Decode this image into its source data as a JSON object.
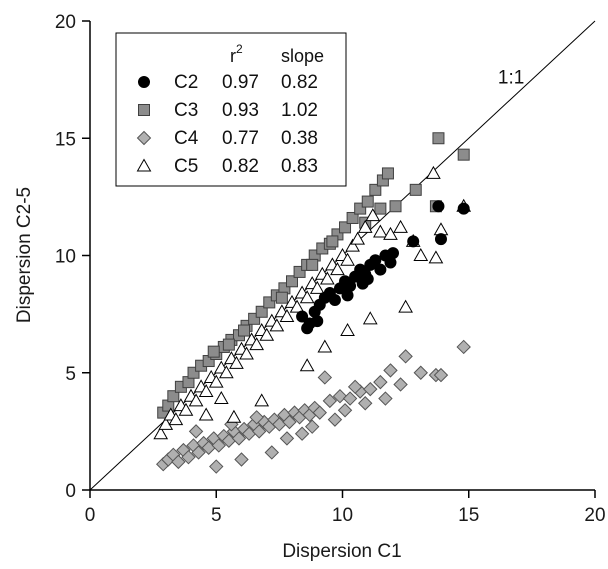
{
  "chart_data": {
    "type": "scatter",
    "xlabel": "Dispersion C1",
    "ylabel": "Dispersion C2-5",
    "xlim": [
      0,
      20
    ],
    "ylim": [
      0,
      20
    ],
    "xticks": [
      "0",
      "5",
      "10",
      "15",
      "20"
    ],
    "yticks": [
      "0",
      "5",
      "10",
      "15",
      "20"
    ],
    "reference_line": {
      "label": "1:1",
      "slope": 1,
      "intercept": 0
    },
    "legend": {
      "placement": "top-left",
      "header_r2": "r",
      "header_r2_sup": "2",
      "header_slope": "slope"
    },
    "series": [
      {
        "name": "C2",
        "r2": "0.97",
        "slope": "0.82",
        "marker": "circle",
        "fill": "#000000",
        "stroke": "#000000",
        "points": [
          [
            8.4,
            7.4
          ],
          [
            8.7,
            7.1
          ],
          [
            8.9,
            7.6
          ],
          [
            9.1,
            7.9
          ],
          [
            9.3,
            8.2
          ],
          [
            9.5,
            8.4
          ],
          [
            9.7,
            8.1
          ],
          [
            9.9,
            8.6
          ],
          [
            10.1,
            8.9
          ],
          [
            10.3,
            8.7
          ],
          [
            10.5,
            9.1
          ],
          [
            10.7,
            9.4
          ],
          [
            10.9,
            9.2
          ],
          [
            11.1,
            9.6
          ],
          [
            11.3,
            9.8
          ],
          [
            11.5,
            9.4
          ],
          [
            11.7,
            10.0
          ],
          [
            12.0,
            10.1
          ],
          [
            10.2,
            8.3
          ],
          [
            9.0,
            7.2
          ],
          [
            8.6,
            6.9
          ],
          [
            10.8,
            8.8
          ],
          [
            11.0,
            9.0
          ],
          [
            11.9,
            9.7
          ],
          [
            12.8,
            10.6
          ],
          [
            13.9,
            10.7
          ],
          [
            13.8,
            12.1
          ],
          [
            14.8,
            12.0
          ]
        ]
      },
      {
        "name": "C3",
        "r2": "0.93",
        "slope": "1.02",
        "marker": "square",
        "fill": "#8c8c8c",
        "stroke": "#404040",
        "points": [
          [
            2.9,
            3.3
          ],
          [
            3.1,
            3.6
          ],
          [
            3.3,
            4.0
          ],
          [
            3.6,
            4.4
          ],
          [
            3.9,
            4.6
          ],
          [
            4.1,
            5.0
          ],
          [
            4.4,
            5.3
          ],
          [
            4.7,
            5.5
          ],
          [
            5.0,
            5.8
          ],
          [
            5.3,
            6.1
          ],
          [
            5.6,
            6.4
          ],
          [
            5.9,
            6.6
          ],
          [
            6.2,
            7.0
          ],
          [
            6.5,
            7.3
          ],
          [
            6.8,
            7.6
          ],
          [
            7.1,
            8.0
          ],
          [
            7.4,
            8.3
          ],
          [
            7.7,
            8.6
          ],
          [
            8.0,
            8.9
          ],
          [
            8.3,
            9.3
          ],
          [
            8.6,
            9.6
          ],
          [
            8.9,
            10.0
          ],
          [
            9.2,
            10.3
          ],
          [
            9.5,
            10.5
          ],
          [
            9.8,
            10.9
          ],
          [
            10.1,
            11.2
          ],
          [
            10.4,
            11.6
          ],
          [
            10.7,
            12.0
          ],
          [
            11.0,
            12.3
          ],
          [
            11.3,
            12.8
          ],
          [
            11.6,
            13.2
          ],
          [
            11.8,
            13.5
          ],
          [
            12.1,
            12.1
          ],
          [
            12.9,
            12.8
          ],
          [
            13.8,
            15.0
          ],
          [
            14.8,
            14.3
          ],
          [
            13.7,
            12.1
          ],
          [
            7.6,
            8.2
          ],
          [
            6.1,
            6.8
          ],
          [
            4.9,
            5.9
          ],
          [
            9.6,
            10.6
          ],
          [
            10.9,
            11.4
          ],
          [
            11.5,
            12.0
          ],
          [
            5.5,
            6.2
          ],
          [
            8.8,
            9.6
          ]
        ]
      },
      {
        "name": "C4",
        "r2": "0.77",
        "slope": "0.38",
        "marker": "diamond",
        "fill": "#b0b0b0",
        "stroke": "#555555",
        "points": [
          [
            2.9,
            1.1
          ],
          [
            3.1,
            1.3
          ],
          [
            3.3,
            1.5
          ],
          [
            3.5,
            1.2
          ],
          [
            3.7,
            1.7
          ],
          [
            3.9,
            1.4
          ],
          [
            4.1,
            1.9
          ],
          [
            4.3,
            1.6
          ],
          [
            4.5,
            2.0
          ],
          [
            4.7,
            1.8
          ],
          [
            4.9,
            2.2
          ],
          [
            5.1,
            1.9
          ],
          [
            5.3,
            2.3
          ],
          [
            5.5,
            2.1
          ],
          [
            5.7,
            2.5
          ],
          [
            5.9,
            2.2
          ],
          [
            6.1,
            2.6
          ],
          [
            6.3,
            2.4
          ],
          [
            6.5,
            2.8
          ],
          [
            6.7,
            2.5
          ],
          [
            6.9,
            2.9
          ],
          [
            7.1,
            2.7
          ],
          [
            7.3,
            3.0
          ],
          [
            7.5,
            2.8
          ],
          [
            7.7,
            3.2
          ],
          [
            7.9,
            2.9
          ],
          [
            8.1,
            3.3
          ],
          [
            8.3,
            3.1
          ],
          [
            8.5,
            3.4
          ],
          [
            8.7,
            3.2
          ],
          [
            8.9,
            3.5
          ],
          [
            9.1,
            3.3
          ],
          [
            9.5,
            3.8
          ],
          [
            9.9,
            4.0
          ],
          [
            10.3,
            3.9
          ],
          [
            10.7,
            4.2
          ],
          [
            11.1,
            4.3
          ],
          [
            11.5,
            4.6
          ],
          [
            11.9,
            5.1
          ],
          [
            12.5,
            5.7
          ],
          [
            13.1,
            5.0
          ],
          [
            13.7,
            4.9
          ],
          [
            13.9,
            4.9
          ],
          [
            14.8,
            6.1
          ],
          [
            9.3,
            4.8
          ],
          [
            10.1,
            3.4
          ],
          [
            10.9,
            3.7
          ],
          [
            6.0,
            1.3
          ],
          [
            7.2,
            1.6
          ],
          [
            5.0,
            1.0
          ],
          [
            8.4,
            2.4
          ],
          [
            4.2,
            2.5
          ],
          [
            9.7,
            3.0
          ],
          [
            11.7,
            3.9
          ],
          [
            12.3,
            4.5
          ],
          [
            10.5,
            4.4
          ],
          [
            7.8,
            2.2
          ],
          [
            6.6,
            3.1
          ],
          [
            5.6,
            2.8
          ],
          [
            8.8,
            2.7
          ]
        ]
      },
      {
        "name": "C5",
        "r2": "0.82",
        "slope": "0.83",
        "marker": "triangle",
        "fill": "#ffffff",
        "stroke": "#000000",
        "points": [
          [
            2.8,
            2.4
          ],
          [
            3.0,
            2.8
          ],
          [
            3.2,
            3.2
          ],
          [
            3.4,
            3.0
          ],
          [
            3.6,
            3.6
          ],
          [
            3.8,
            3.4
          ],
          [
            4.0,
            4.0
          ],
          [
            4.2,
            3.8
          ],
          [
            4.4,
            4.4
          ],
          [
            4.6,
            4.2
          ],
          [
            4.8,
            4.8
          ],
          [
            5.0,
            4.6
          ],
          [
            5.2,
            5.2
          ],
          [
            5.4,
            5.0
          ],
          [
            5.6,
            5.6
          ],
          [
            5.8,
            5.4
          ],
          [
            6.0,
            6.0
          ],
          [
            6.2,
            5.8
          ],
          [
            6.4,
            6.4
          ],
          [
            6.6,
            6.2
          ],
          [
            6.8,
            6.8
          ],
          [
            7.0,
            6.6
          ],
          [
            7.2,
            7.2
          ],
          [
            7.4,
            7.0
          ],
          [
            7.6,
            7.6
          ],
          [
            7.8,
            7.4
          ],
          [
            8.0,
            8.0
          ],
          [
            8.2,
            7.8
          ],
          [
            8.4,
            8.4
          ],
          [
            8.6,
            8.2
          ],
          [
            8.8,
            8.8
          ],
          [
            9.0,
            8.6
          ],
          [
            9.2,
            9.2
          ],
          [
            9.4,
            9.0
          ],
          [
            9.6,
            9.6
          ],
          [
            9.8,
            9.4
          ],
          [
            10.0,
            10.0
          ],
          [
            10.2,
            9.8
          ],
          [
            10.4,
            10.4
          ],
          [
            10.6,
            10.7
          ],
          [
            10.9,
            11.2
          ],
          [
            11.2,
            11.7
          ],
          [
            11.5,
            11.0
          ],
          [
            11.9,
            10.9
          ],
          [
            12.3,
            11.2
          ],
          [
            12.8,
            10.6
          ],
          [
            13.1,
            10.0
          ],
          [
            12.5,
            7.8
          ],
          [
            11.1,
            7.3
          ],
          [
            10.2,
            6.8
          ],
          [
            13.7,
            9.9
          ],
          [
            13.9,
            11.1
          ],
          [
            13.6,
            13.5
          ],
          [
            14.8,
            12.1
          ],
          [
            5.7,
            3.1
          ],
          [
            6.8,
            3.8
          ],
          [
            8.6,
            5.3
          ],
          [
            9.3,
            6.1
          ],
          [
            4.6,
            3.2
          ],
          [
            5.2,
            3.9
          ]
        ]
      }
    ]
  }
}
